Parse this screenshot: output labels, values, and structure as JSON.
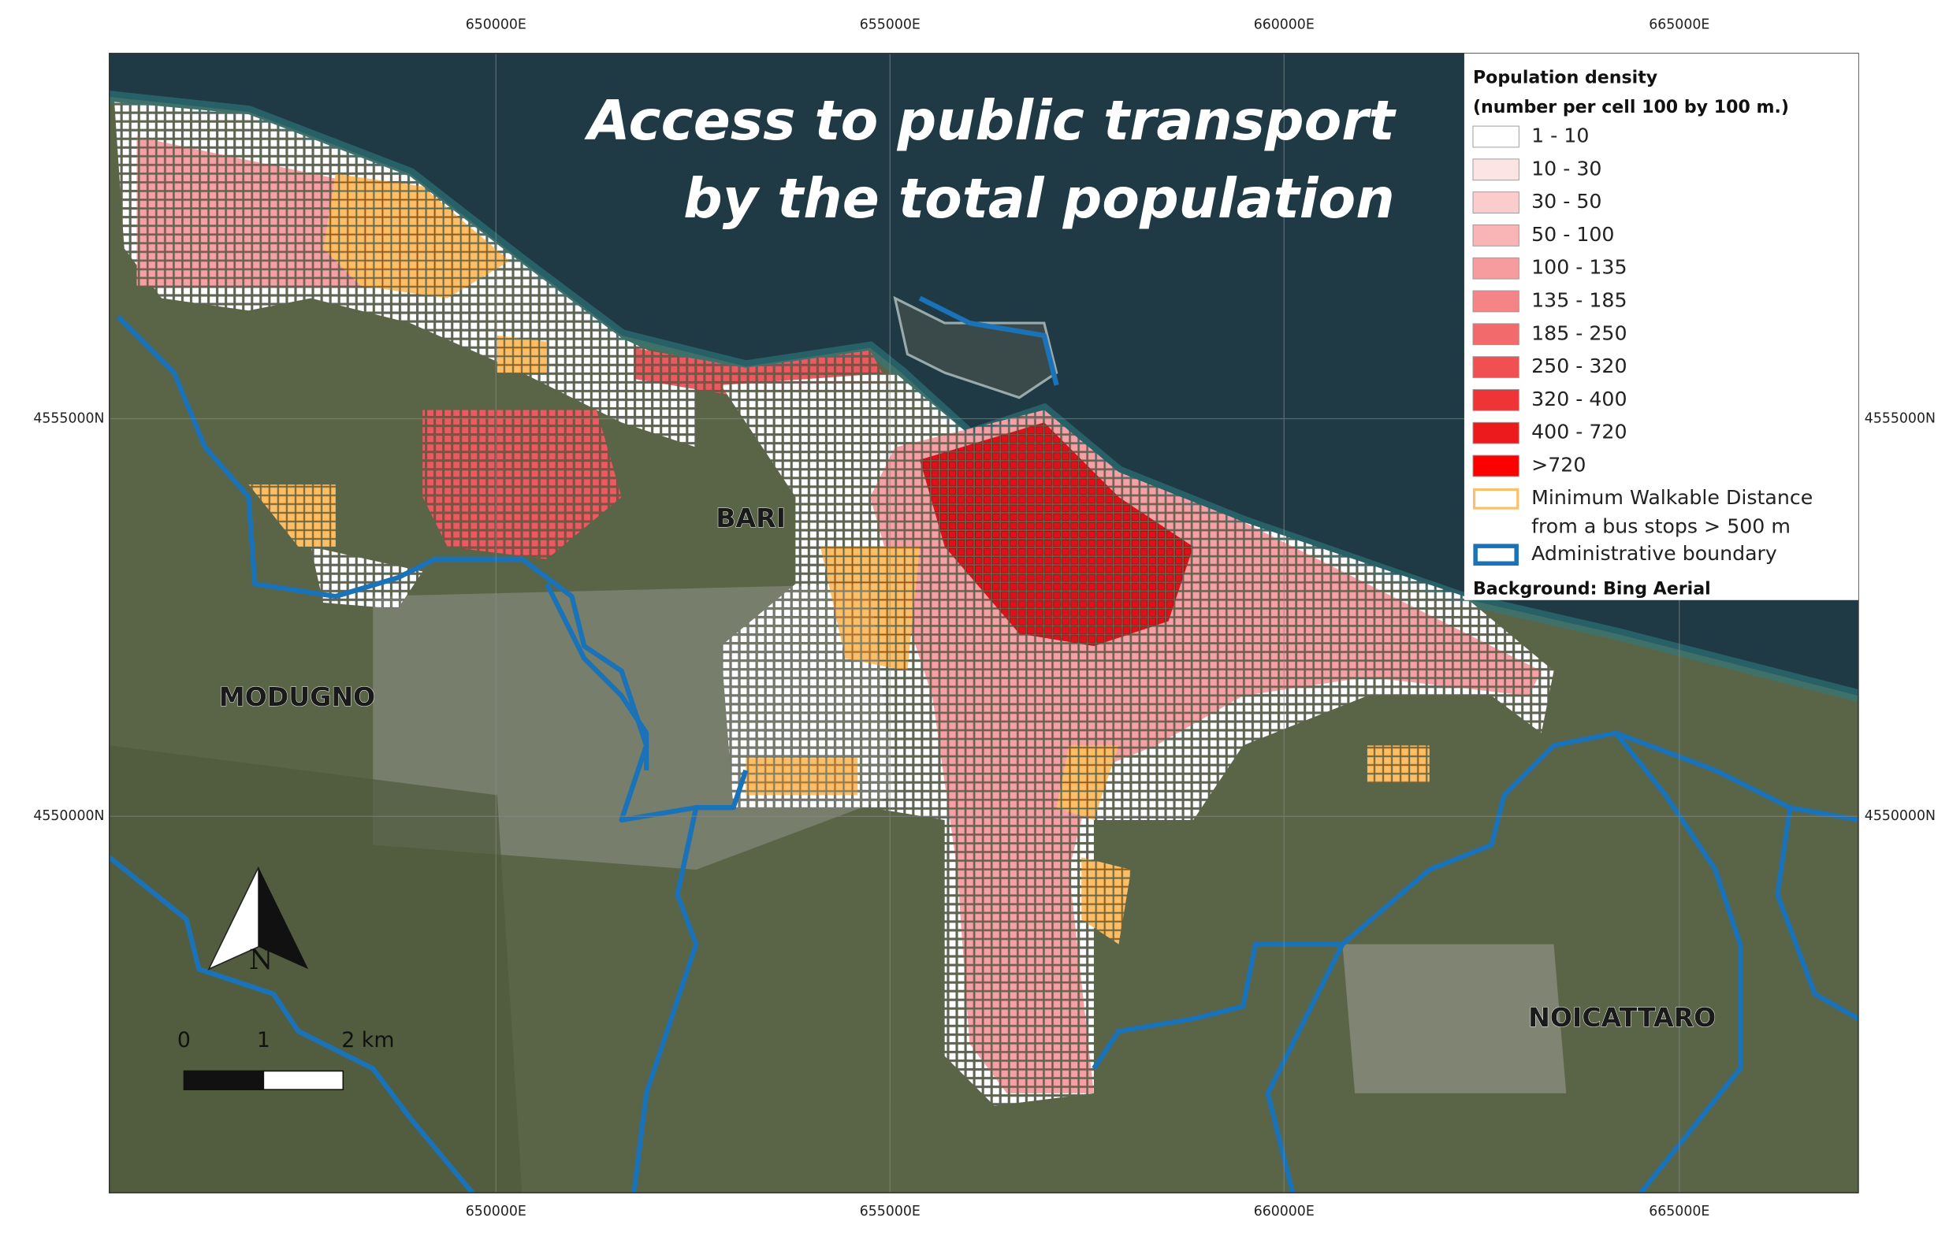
{
  "title": [
    "Access to public transport",
    "by the total population"
  ],
  "legend": {
    "title": [
      "Population density",
      "(number per cell 100 by 100 m.)"
    ],
    "items": [
      {
        "label": "1 - 10",
        "color": "#ffffff"
      },
      {
        "label": "10 - 30",
        "color": "#fde4e4"
      },
      {
        "label": "30 - 50",
        "color": "#fbcccc"
      },
      {
        "label": "50 - 100",
        "color": "#f9b4b6"
      },
      {
        "label": "100 - 135",
        "color": "#f69c9e"
      },
      {
        "label": "135 - 185",
        "color": "#f48486"
      },
      {
        "label": "185 - 250",
        "color": "#f26a6c"
      },
      {
        "label": "250 - 320",
        "color": "#f05052"
      },
      {
        "label": "320 - 400",
        "color": "#ee3436"
      },
      {
        "label": "400 - 720",
        "color": "#ec1a1c"
      },
      {
        "label": ">720",
        "color": "#ff0000"
      }
    ],
    "walkable": [
      "Minimum Walkable Distance",
      "from a bus stops > 500 m"
    ],
    "boundary": "Administrative boundary",
    "background": "Background: Bing Aerial"
  },
  "places": [
    "BARI",
    "MODUGNO",
    "NOICATTARO"
  ],
  "grid_labels": {
    "top": [
      "650000E",
      "655000E",
      "660000E",
      "665000E"
    ],
    "bottom": [
      "650000E",
      "655000E",
      "660000E",
      "665000E"
    ],
    "left": [
      "4555000N",
      "4550000N"
    ],
    "right": [
      "4555000N",
      "4550000N"
    ]
  },
  "scale_bar": [
    "0",
    "1",
    "2 km"
  ],
  "north": "N"
}
